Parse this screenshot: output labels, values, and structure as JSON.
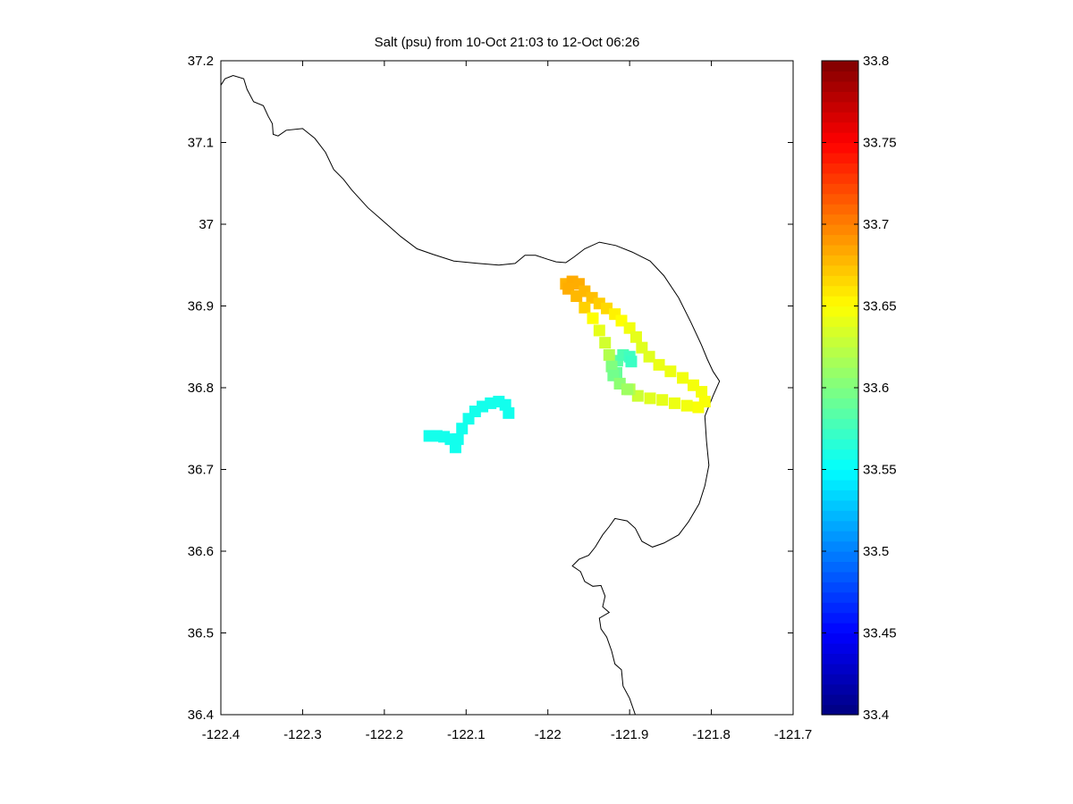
{
  "chart_data": {
    "type": "scatter",
    "title": "Salt (psu) from 10-Oct 21:03 to 12-Oct 06:26",
    "xlabel": "",
    "ylabel": "",
    "xlim": [
      -122.4,
      -121.7
    ],
    "ylim": [
      36.4,
      37.2
    ],
    "x_ticks": [
      -122.4,
      -122.3,
      -122.2,
      -122.1,
      -122,
      -121.9,
      -121.8,
      -121.7
    ],
    "x_tick_labels": [
      "-122.4",
      "-122.3",
      "-122.2",
      "-122.1",
      "-122",
      "-121.9",
      "-121.8",
      "-121.7"
    ],
    "y_ticks": [
      36.4,
      36.5,
      36.6,
      36.7,
      36.8,
      36.9,
      37,
      37.1,
      37.2
    ],
    "y_tick_labels": [
      "36.4",
      "36.5",
      "36.6",
      "36.7",
      "36.8",
      "36.9",
      "37",
      "37.1",
      "37.2"
    ],
    "grid": false,
    "colormap": "jet",
    "colorbar": {
      "range": [
        33.4,
        33.8
      ],
      "ticks": [
        33.4,
        33.45,
        33.5,
        33.55,
        33.6,
        33.65,
        33.7,
        33.75,
        33.8
      ],
      "tick_labels": [
        "33.4",
        "33.45",
        "33.5",
        "33.55",
        "33.6",
        "33.65",
        "33.7",
        "33.75",
        "33.8"
      ],
      "levels": 64
    },
    "coastline": [
      [
        -122.4,
        37.17
      ],
      [
        -122.395,
        37.178
      ],
      [
        -122.385,
        37.182
      ],
      [
        -122.372,
        37.178
      ],
      [
        -122.368,
        37.165
      ],
      [
        -122.36,
        37.15
      ],
      [
        -122.348,
        37.145
      ],
      [
        -122.342,
        37.132
      ],
      [
        -122.337,
        37.123
      ],
      [
        -122.336,
        37.11
      ],
      [
        -122.33,
        37.108
      ],
      [
        -122.32,
        37.115
      ],
      [
        -122.3,
        37.117
      ],
      [
        -122.285,
        37.105
      ],
      [
        -122.272,
        37.088
      ],
      [
        -122.262,
        37.067
      ],
      [
        -122.25,
        37.055
      ],
      [
        -122.24,
        37.042
      ],
      [
        -122.22,
        37.02
      ],
      [
        -122.205,
        37.007
      ],
      [
        -122.18,
        36.985
      ],
      [
        -122.16,
        36.97
      ],
      [
        -122.14,
        36.963
      ],
      [
        -122.115,
        36.955
      ],
      [
        -122.085,
        36.952
      ],
      [
        -122.06,
        36.95
      ],
      [
        -122.04,
        36.952
      ],
      [
        -122.028,
        36.962
      ],
      [
        -122.015,
        36.962
      ],
      [
        -122.0,
        36.957
      ],
      [
        -121.99,
        36.954
      ],
      [
        -121.978,
        36.953
      ],
      [
        -121.968,
        36.96
      ],
      [
        -121.955,
        36.97
      ],
      [
        -121.937,
        36.978
      ],
      [
        -121.917,
        36.974
      ],
      [
        -121.897,
        36.966
      ],
      [
        -121.875,
        36.955
      ],
      [
        -121.858,
        36.937
      ],
      [
        -121.84,
        36.91
      ],
      [
        -121.825,
        36.88
      ],
      [
        -121.812,
        36.852
      ],
      [
        -121.805,
        36.835
      ],
      [
        -121.798,
        36.82
      ],
      [
        -121.79,
        36.808
      ],
      [
        -121.798,
        36.79
      ],
      [
        -121.808,
        36.765
      ],
      [
        -121.806,
        36.735
      ],
      [
        -121.803,
        36.705
      ],
      [
        -121.808,
        36.68
      ],
      [
        -121.815,
        36.658
      ],
      [
        -121.828,
        36.636
      ],
      [
        -121.84,
        36.62
      ],
      [
        -121.858,
        36.61
      ],
      [
        -121.872,
        36.605
      ],
      [
        -121.885,
        36.612
      ],
      [
        -121.893,
        36.628
      ],
      [
        -121.903,
        36.637
      ],
      [
        -121.918,
        36.64
      ],
      [
        -121.925,
        36.63
      ],
      [
        -121.933,
        36.62
      ],
      [
        -121.942,
        36.605
      ],
      [
        -121.95,
        36.595
      ],
      [
        -121.962,
        36.59
      ],
      [
        -121.97,
        36.582
      ],
      [
        -121.96,
        36.575
      ],
      [
        -121.955,
        36.563
      ],
      [
        -121.945,
        36.557
      ],
      [
        -121.935,
        36.558
      ],
      [
        -121.93,
        36.545
      ],
      [
        -121.933,
        36.532
      ],
      [
        -121.925,
        36.525
      ],
      [
        -121.937,
        36.518
      ],
      [
        -121.935,
        36.505
      ],
      [
        -121.928,
        36.495
      ],
      [
        -121.922,
        36.478
      ],
      [
        -121.918,
        36.462
      ],
      [
        -121.91,
        36.455
      ],
      [
        -121.908,
        36.435
      ],
      [
        -121.9,
        36.42
      ],
      [
        -121.893,
        36.4
      ]
    ],
    "track_points": [
      [
        -122.145,
        36.741,
        33.558
      ],
      [
        -122.136,
        36.741,
        33.558
      ],
      [
        -122.127,
        36.74,
        33.558
      ],
      [
        -122.119,
        36.737,
        33.557
      ],
      [
        -122.113,
        36.727,
        33.557
      ],
      [
        -122.11,
        36.737,
        33.557
      ],
      [
        -122.105,
        36.75,
        33.557
      ],
      [
        -122.097,
        36.762,
        33.558
      ],
      [
        -122.089,
        36.771,
        33.558
      ],
      [
        -122.08,
        36.777,
        33.558
      ],
      [
        -122.07,
        36.781,
        33.558
      ],
      [
        -122.06,
        36.783,
        33.558
      ],
      [
        -122.052,
        36.779,
        33.557
      ],
      [
        -122.048,
        36.769,
        33.557
      ],
      [
        -121.978,
        36.927,
        33.68
      ],
      [
        -121.97,
        36.93,
        33.683
      ],
      [
        -121.962,
        36.927,
        33.682
      ],
      [
        -121.955,
        36.918,
        33.678
      ],
      [
        -121.946,
        36.91,
        33.675
      ],
      [
        -121.937,
        36.903,
        33.67
      ],
      [
        -121.928,
        36.897,
        33.665
      ],
      [
        -121.918,
        36.89,
        33.655
      ],
      [
        -121.91,
        36.882,
        33.65
      ],
      [
        -121.9,
        36.873,
        33.645
      ],
      [
        -121.892,
        36.862,
        33.64
      ],
      [
        -121.885,
        36.849,
        33.638
      ],
      [
        -121.876,
        36.838,
        33.638
      ],
      [
        -121.864,
        36.828,
        33.642
      ],
      [
        -121.85,
        36.82,
        33.643
      ],
      [
        -121.835,
        36.812,
        33.645
      ],
      [
        -121.822,
        36.803,
        33.646
      ],
      [
        -121.812,
        36.795,
        33.646
      ],
      [
        -121.808,
        36.783,
        33.648
      ],
      [
        -121.816,
        36.776,
        33.648
      ],
      [
        -121.83,
        36.778,
        33.645
      ],
      [
        -121.845,
        36.781,
        33.643
      ],
      [
        -121.86,
        36.785,
        33.64
      ],
      [
        -121.875,
        36.787,
        33.638
      ],
      [
        -121.89,
        36.79,
        33.63
      ],
      [
        -121.9,
        36.798,
        33.62
      ],
      [
        -121.912,
        36.805,
        33.6
      ],
      [
        -121.916,
        36.818,
        33.59
      ],
      [
        -121.915,
        36.833,
        33.585
      ],
      [
        -121.908,
        36.84,
        33.58
      ],
      [
        -121.9,
        36.838,
        33.575
      ],
      [
        -121.898,
        36.832,
        33.573
      ],
      [
        -121.975,
        36.921,
        33.682
      ],
      [
        -121.965,
        36.912,
        33.678
      ],
      [
        -121.955,
        36.898,
        33.668
      ],
      [
        -121.945,
        36.885,
        33.65
      ],
      [
        -121.937,
        36.87,
        33.64
      ],
      [
        -121.93,
        36.855,
        33.632
      ],
      [
        -121.925,
        36.84,
        33.62
      ],
      [
        -121.922,
        36.826,
        33.6
      ],
      [
        -121.92,
        36.815,
        33.595
      ],
      [
        -121.912,
        36.805,
        33.605
      ],
      [
        -121.903,
        36.798,
        33.612
      ]
    ]
  }
}
